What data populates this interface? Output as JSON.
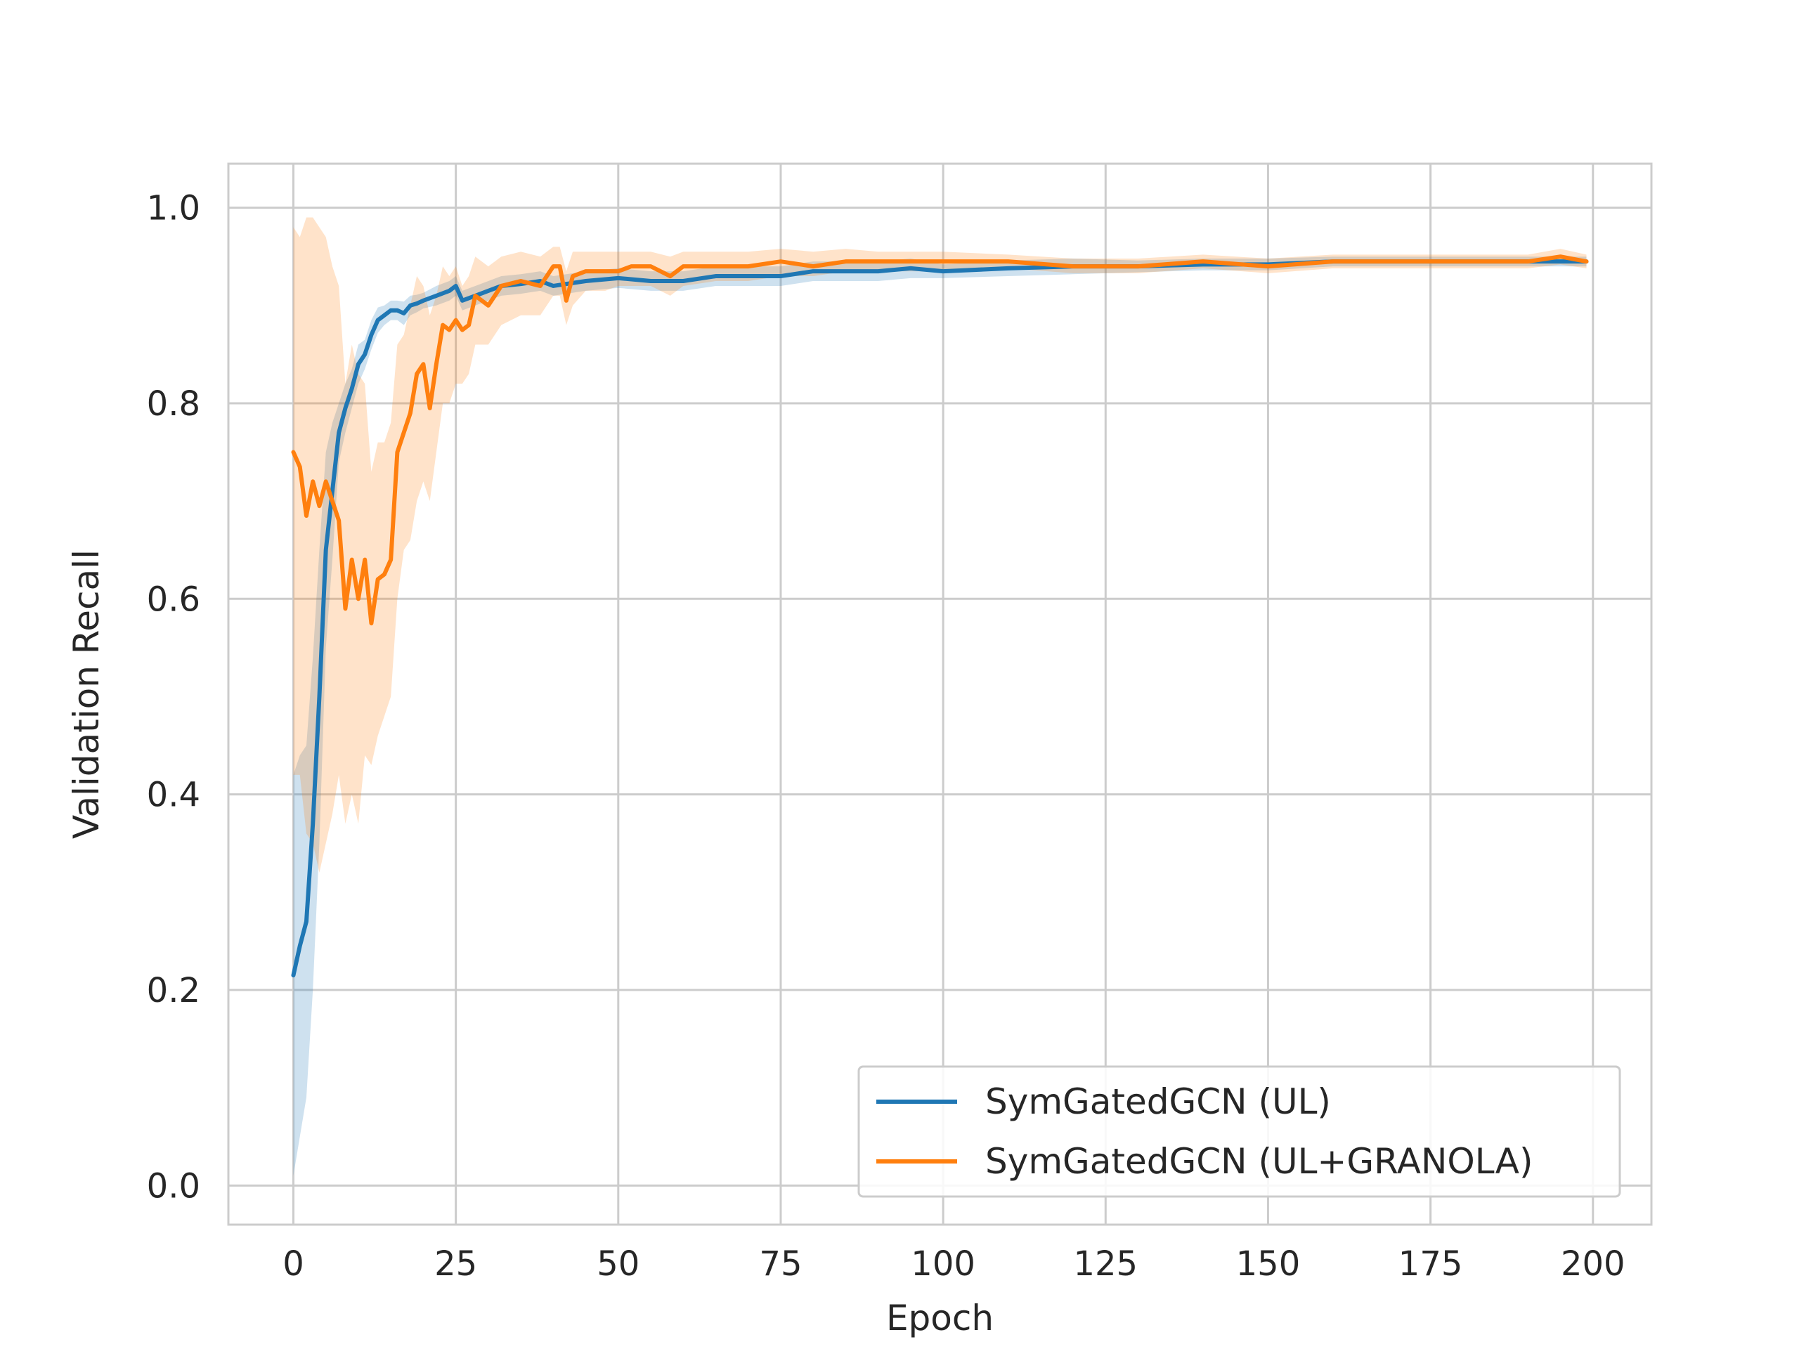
{
  "chart_data": {
    "type": "line",
    "title": "",
    "xlabel": "Epoch",
    "ylabel": "Validation Recall",
    "xlim": [
      -10,
      209
    ],
    "ylim": [
      -0.04,
      1.045
    ],
    "xticks": [
      "0",
      "25",
      "50",
      "75",
      "100",
      "125",
      "150",
      "175",
      "200"
    ],
    "yticks": [
      "0.0",
      "0.2",
      "0.4",
      "0.6",
      "0.8",
      "1.0"
    ],
    "grid": true,
    "legend_position": "lower right",
    "series": [
      {
        "name": "SymGatedGCN (UL)",
        "color": "#1f77b4",
        "x": [
          0,
          1,
          2,
          3,
          4,
          5,
          6,
          7,
          8,
          9,
          10,
          11,
          12,
          13,
          14,
          15,
          16,
          17,
          18,
          19,
          20,
          22,
          24,
          25,
          26,
          28,
          30,
          32,
          35,
          38,
          40,
          45,
          50,
          55,
          60,
          65,
          70,
          75,
          80,
          85,
          90,
          95,
          100,
          110,
          120,
          130,
          140,
          150,
          160,
          170,
          180,
          190,
          199
        ],
        "y": [
          0.215,
          0.245,
          0.27,
          0.37,
          0.5,
          0.65,
          0.71,
          0.77,
          0.795,
          0.815,
          0.84,
          0.85,
          0.87,
          0.885,
          0.89,
          0.895,
          0.895,
          0.892,
          0.9,
          0.902,
          0.905,
          0.91,
          0.915,
          0.92,
          0.905,
          0.91,
          0.915,
          0.92,
          0.922,
          0.925,
          0.92,
          0.925,
          0.928,
          0.925,
          0.925,
          0.93,
          0.93,
          0.93,
          0.935,
          0.935,
          0.935,
          0.938,
          0.935,
          0.938,
          0.94,
          0.94,
          0.942,
          0.942,
          0.945,
          0.945,
          0.945,
          0.945,
          0.945
        ],
        "lower": [
          0.01,
          0.05,
          0.09,
          0.2,
          0.35,
          0.55,
          0.64,
          0.74,
          0.77,
          0.795,
          0.82,
          0.835,
          0.855,
          0.872,
          0.88,
          0.885,
          0.885,
          0.88,
          0.89,
          0.893,
          0.897,
          0.9,
          0.905,
          0.91,
          0.895,
          0.9,
          0.905,
          0.91,
          0.912,
          0.915,
          0.91,
          0.915,
          0.918,
          0.915,
          0.915,
          0.92,
          0.92,
          0.92,
          0.925,
          0.925,
          0.925,
          0.928,
          0.928,
          0.93,
          0.932,
          0.934,
          0.936,
          0.936,
          0.94,
          0.94,
          0.94,
          0.94,
          0.94
        ],
        "upper": [
          0.42,
          0.44,
          0.45,
          0.54,
          0.65,
          0.75,
          0.78,
          0.8,
          0.82,
          0.835,
          0.86,
          0.865,
          0.885,
          0.898,
          0.9,
          0.905,
          0.905,
          0.904,
          0.91,
          0.911,
          0.913,
          0.92,
          0.925,
          0.93,
          0.915,
          0.92,
          0.925,
          0.93,
          0.932,
          0.935,
          0.93,
          0.935,
          0.938,
          0.935,
          0.935,
          0.94,
          0.94,
          0.94,
          0.945,
          0.945,
          0.945,
          0.948,
          0.942,
          0.946,
          0.948,
          0.946,
          0.948,
          0.948,
          0.95,
          0.95,
          0.95,
          0.95,
          0.95
        ]
      },
      {
        "name": "SymGatedGCN (UL+GRANOLA)",
        "color": "#ff7f0e",
        "x": [
          0,
          1,
          2,
          3,
          4,
          5,
          6,
          7,
          8,
          9,
          10,
          11,
          12,
          13,
          14,
          15,
          16,
          17,
          18,
          19,
          20,
          21,
          22,
          23,
          24,
          25,
          26,
          27,
          28,
          30,
          32,
          35,
          38,
          40,
          41,
          42,
          43,
          45,
          48,
          50,
          52,
          55,
          58,
          60,
          65,
          70,
          75,
          80,
          85,
          90,
          95,
          100,
          110,
          120,
          130,
          140,
          150,
          160,
          170,
          180,
          190,
          195,
          199
        ],
        "y": [
          0.75,
          0.735,
          0.685,
          0.72,
          0.695,
          0.72,
          0.7,
          0.68,
          0.59,
          0.64,
          0.6,
          0.64,
          0.575,
          0.62,
          0.625,
          0.64,
          0.75,
          0.77,
          0.79,
          0.83,
          0.84,
          0.795,
          0.84,
          0.88,
          0.875,
          0.885,
          0.875,
          0.88,
          0.91,
          0.9,
          0.92,
          0.925,
          0.92,
          0.94,
          0.94,
          0.905,
          0.93,
          0.935,
          0.935,
          0.935,
          0.94,
          0.94,
          0.93,
          0.94,
          0.94,
          0.94,
          0.945,
          0.94,
          0.945,
          0.945,
          0.945,
          0.945,
          0.945,
          0.94,
          0.94,
          0.945,
          0.94,
          0.945,
          0.945,
          0.945,
          0.945,
          0.95,
          0.945
        ],
        "lower": [
          0.42,
          0.42,
          0.36,
          0.35,
          0.32,
          0.35,
          0.38,
          0.42,
          0.37,
          0.4,
          0.37,
          0.44,
          0.43,
          0.46,
          0.48,
          0.5,
          0.6,
          0.65,
          0.66,
          0.7,
          0.72,
          0.7,
          0.75,
          0.8,
          0.8,
          0.82,
          0.82,
          0.83,
          0.86,
          0.86,
          0.88,
          0.89,
          0.89,
          0.91,
          0.91,
          0.88,
          0.9,
          0.915,
          0.915,
          0.92,
          0.92,
          0.92,
          0.91,
          0.92,
          0.925,
          0.925,
          0.93,
          0.93,
          0.935,
          0.935,
          0.935,
          0.935,
          0.938,
          0.933,
          0.933,
          0.938,
          0.933,
          0.938,
          0.938,
          0.938,
          0.938,
          0.942,
          0.938
        ],
        "upper": [
          0.98,
          0.97,
          0.99,
          0.99,
          0.98,
          0.97,
          0.94,
          0.92,
          0.82,
          0.86,
          0.83,
          0.82,
          0.73,
          0.76,
          0.76,
          0.78,
          0.86,
          0.87,
          0.9,
          0.93,
          0.92,
          0.89,
          0.91,
          0.94,
          0.93,
          0.94,
          0.92,
          0.93,
          0.95,
          0.94,
          0.95,
          0.955,
          0.95,
          0.96,
          0.96,
          0.935,
          0.955,
          0.955,
          0.955,
          0.955,
          0.955,
          0.955,
          0.95,
          0.955,
          0.955,
          0.955,
          0.958,
          0.955,
          0.958,
          0.955,
          0.955,
          0.955,
          0.952,
          0.948,
          0.948,
          0.952,
          0.948,
          0.952,
          0.952,
          0.952,
          0.952,
          0.958,
          0.952
        ]
      }
    ]
  }
}
